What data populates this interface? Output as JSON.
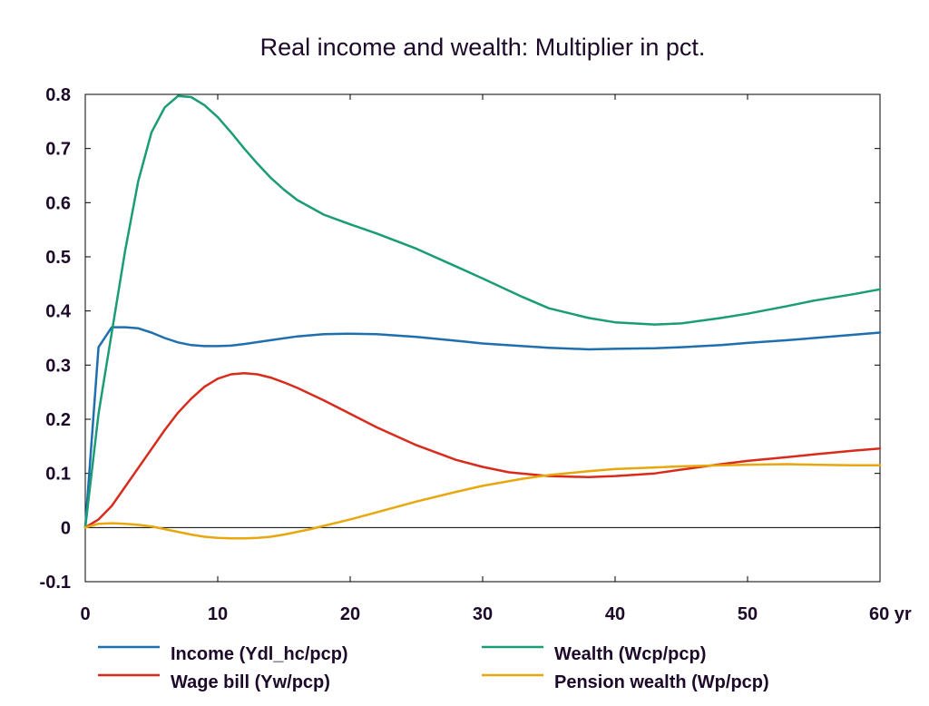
{
  "chart_data": {
    "type": "line",
    "title": "Real income and wealth: Multiplier in pct.",
    "xlabel": "",
    "ylabel": "",
    "x_unit_label": "yr",
    "xlim": [
      0,
      60
    ],
    "ylim": [
      -0.1,
      0.8
    ],
    "x_ticks": [
      0,
      10,
      20,
      30,
      40,
      50,
      60
    ],
    "x_tick_labels": [
      "0",
      "10",
      "20",
      "30",
      "40",
      "50",
      "60 yr"
    ],
    "y_ticks": [
      -0.1,
      0,
      0.1,
      0.2,
      0.3,
      0.4,
      0.5,
      0.6,
      0.7,
      0.8
    ],
    "y_tick_labels": [
      "-0.1",
      "0",
      "0.1",
      "0.2",
      "0.3",
      "0.4",
      "0.5",
      "0.6",
      "0.7",
      "0.8"
    ],
    "zero_line": true,
    "grid": false,
    "legend_position": "bottom",
    "series": [
      {
        "name": "Income (Ydl_hc/pcp)",
        "color": "#1f6faf",
        "x": [
          0,
          1,
          2,
          3,
          4,
          5,
          6,
          7,
          8,
          9,
          10,
          11,
          12,
          14,
          16,
          18,
          20,
          22,
          25,
          28,
          30,
          33,
          35,
          38,
          40,
          43,
          45,
          48,
          50,
          53,
          55,
          58,
          60
        ],
        "y": [
          0,
          0.333,
          0.37,
          0.37,
          0.368,
          0.36,
          0.35,
          0.342,
          0.337,
          0.335,
          0.335,
          0.336,
          0.339,
          0.346,
          0.353,
          0.357,
          0.358,
          0.357,
          0.352,
          0.345,
          0.34,
          0.335,
          0.332,
          0.329,
          0.33,
          0.331,
          0.333,
          0.337,
          0.341,
          0.346,
          0.35,
          0.356,
          0.36
        ]
      },
      {
        "name": "Wage bill (Yw/pcp)",
        "color": "#d92b1c",
        "x": [
          0,
          1,
          2,
          3,
          4,
          5,
          6,
          7,
          8,
          9,
          10,
          11,
          12,
          13,
          14,
          15,
          16,
          18,
          20,
          22,
          25,
          28,
          30,
          32,
          35,
          38,
          40,
          43,
          45,
          48,
          50,
          53,
          55,
          58,
          60
        ],
        "y": [
          0,
          0.015,
          0.04,
          0.075,
          0.11,
          0.145,
          0.18,
          0.212,
          0.238,
          0.26,
          0.275,
          0.283,
          0.285,
          0.283,
          0.277,
          0.268,
          0.258,
          0.235,
          0.21,
          0.185,
          0.152,
          0.125,
          0.112,
          0.102,
          0.095,
          0.093,
          0.095,
          0.1,
          0.107,
          0.117,
          0.123,
          0.13,
          0.135,
          0.142,
          0.146
        ]
      },
      {
        "name": "Wealth (Wcp/pcp)",
        "color": "#1a9c74",
        "x": [
          0,
          1,
          2,
          3,
          4,
          5,
          6,
          7,
          8,
          9,
          10,
          11,
          12,
          13,
          14,
          15,
          16,
          18,
          20,
          22,
          25,
          28,
          30,
          33,
          35,
          38,
          40,
          43,
          45,
          48,
          50,
          53,
          55,
          58,
          60
        ],
        "y": [
          0,
          0.21,
          0.36,
          0.51,
          0.64,
          0.73,
          0.776,
          0.797,
          0.795,
          0.78,
          0.758,
          0.73,
          0.7,
          0.672,
          0.646,
          0.624,
          0.605,
          0.578,
          0.56,
          0.543,
          0.515,
          0.482,
          0.46,
          0.426,
          0.405,
          0.387,
          0.379,
          0.375,
          0.377,
          0.387,
          0.395,
          0.409,
          0.419,
          0.431,
          0.44
        ]
      },
      {
        "name": "Pension wealth (Wp/pcp)",
        "color": "#e8a70d",
        "x": [
          0,
          1,
          2,
          3,
          4,
          5,
          6,
          7,
          8,
          9,
          10,
          11,
          12,
          13,
          14,
          15,
          16,
          17,
          18,
          20,
          22,
          25,
          28,
          30,
          33,
          35,
          38,
          40,
          43,
          45,
          48,
          50,
          53,
          55,
          58,
          60
        ],
        "y": [
          0,
          0.007,
          0.008,
          0.007,
          0.005,
          0.002,
          -0.003,
          -0.008,
          -0.013,
          -0.017,
          -0.019,
          -0.02,
          -0.02,
          -0.019,
          -0.017,
          -0.013,
          -0.008,
          -0.003,
          0.003,
          0.015,
          0.028,
          0.048,
          0.066,
          0.077,
          0.09,
          0.097,
          0.104,
          0.108,
          0.111,
          0.113,
          0.115,
          0.116,
          0.117,
          0.116,
          0.115,
          0.115
        ]
      }
    ]
  }
}
